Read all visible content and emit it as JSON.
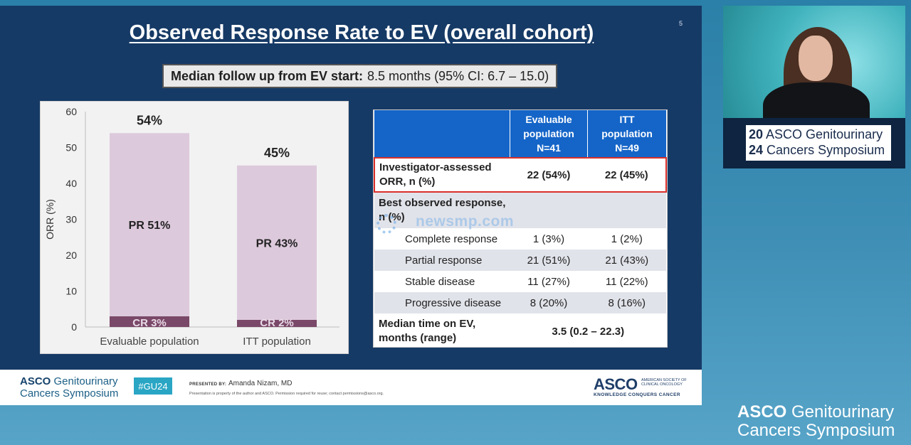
{
  "slide": {
    "title": "Observed Response Rate to EV (overall cohort)",
    "page_number": "5",
    "followup_label": "Median follow up from EV start:",
    "followup_value": "8.5 months (95% CI: 6.7 – 15.0)"
  },
  "chart_data": {
    "type": "bar",
    "stacked": true,
    "categories": [
      "Evaluable population",
      "ITT population"
    ],
    "series": [
      {
        "name": "CR",
        "values": [
          3,
          2
        ],
        "color": "#7a4868"
      },
      {
        "name": "PR",
        "values": [
          51,
          43
        ],
        "color": "#ddc9dc"
      }
    ],
    "totals": [
      "54%",
      "45%"
    ],
    "segment_labels": {
      "pr": [
        "PR 51%",
        "PR 43%"
      ],
      "cr": [
        "CR 3%",
        "CR 2%"
      ]
    },
    "ylabel": "ORR (%)",
    "ylim": [
      0,
      60
    ],
    "yticks": [
      0,
      10,
      20,
      30,
      40,
      50,
      60
    ],
    "grid": false
  },
  "table": {
    "headers": [
      "",
      "Evaluable population N=41",
      "ITT population N=49"
    ],
    "header_lines": [
      [],
      [
        "Evaluable",
        "population",
        "N=41"
      ],
      [
        "ITT",
        "population",
        "N=49"
      ]
    ],
    "rows": {
      "orr_label": "Investigator-assessed ORR, n (%)",
      "orr_eval": "22 (54%)",
      "orr_itt": "22 (45%)",
      "best_label": "Best observed response, n (%)",
      "cr_label": "Complete response",
      "cr_eval": "1 (3%)",
      "cr_itt": "1 (2%)",
      "pr_label": "Partial response",
      "pr_eval": "21 (51%)",
      "pr_itt": "21 (43%)",
      "sd_label": "Stable disease",
      "sd_eval": "11 (27%)",
      "sd_itt": "11 (22%)",
      "pd_label": "Progressive disease",
      "pd_eval": "8 (20%)",
      "pd_itt": "8 (16%)",
      "median_label": "Median time on EV, months (range)",
      "median_value": "3.5 (0.2 – 22.3)"
    },
    "highlight_color": "#d9302b",
    "header_color": "#1565c8"
  },
  "watermark": "newsmp.com",
  "footer": {
    "logo_line1_bold": "ASCO",
    "logo_line1": " Genitourinary",
    "logo_line2": "Cancers Symposium",
    "hashtag": "#GU24",
    "presented_by": "PRESENTED BY:",
    "presenter": "Amanda Nizam, MD",
    "note": "Presentation is property of the author and ASCO. Permission required for reuse; contact permissions@asco.org.",
    "asco_mark": "ASCO",
    "asco_sub": "AMERICAN SOCIETY OF CLINICAL ONCOLOGY",
    "motto": "KNOWLEDGE CONQUERS CANCER"
  },
  "video": {
    "sign_year_top": "20",
    "sign_line1": "ASCO Genitourinary",
    "sign_year_bottom": "24",
    "sign_line2": "Cancers Symposium"
  },
  "brand": {
    "line1_bold": "ASCO",
    "line1": " Genitourinary",
    "line2": "Cancers Symposium"
  }
}
